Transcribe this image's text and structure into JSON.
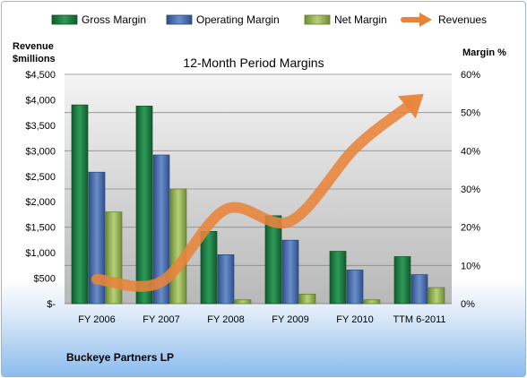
{
  "chart_data": {
    "type": "bar",
    "title": "12-Month Period Margins",
    "company": "Buckeye Partners LP",
    "categories": [
      "FY 2006",
      "FY 2007",
      "FY 2008",
      "FY 2009",
      "FY 2010",
      "TTM 6-2011"
    ],
    "left_axis": {
      "label_line1": "Revenue",
      "label_line2": "$millions",
      "ylim": [
        0,
        4500
      ],
      "ticks": [
        0,
        500,
        1000,
        1500,
        2000,
        2500,
        3000,
        3500,
        4000,
        4500
      ],
      "tick_labels": [
        "$-",
        "$500",
        "$1,000",
        "$1,500",
        "$2,000",
        "$2,500",
        "$3,000",
        "$3,500",
        "$4,000",
        "$4,500"
      ]
    },
    "right_axis": {
      "label": "Margin %",
      "ylim": [
        0,
        60
      ],
      "ticks": [
        0,
        10,
        20,
        30,
        40,
        50,
        60
      ],
      "tick_labels": [
        "0%",
        "10%",
        "20%",
        "30%",
        "40%",
        "50%",
        "60%"
      ]
    },
    "series": [
      {
        "name": "Gross Margin",
        "axis": "right",
        "color": "#1f7a45",
        "values": [
          52.0,
          51.7,
          18.9,
          23.0,
          13.7,
          12.3
        ]
      },
      {
        "name": "Operating Margin",
        "axis": "right",
        "color": "#4a6fb0",
        "values": [
          34.4,
          38.9,
          12.8,
          16.6,
          8.8,
          7.6
        ]
      },
      {
        "name": "Net Margin",
        "axis": "right",
        "color": "#9bbb59",
        "values": [
          24.0,
          30.0,
          1.0,
          2.5,
          1.0,
          4.2
        ]
      }
    ],
    "line_series": {
      "name": "Revenues",
      "axis": "left",
      "color": "#e8843a",
      "values": [
        480,
        430,
        1850,
        1620,
        3050,
        4050
      ]
    },
    "legend_position": "top",
    "grid": true
  }
}
